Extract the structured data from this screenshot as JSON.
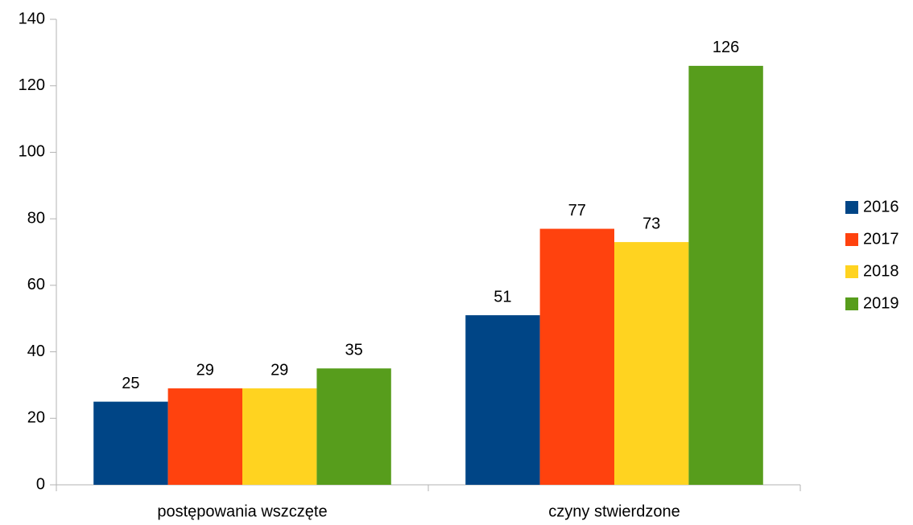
{
  "chart_data": {
    "type": "bar",
    "categories": [
      "postępowania wszczęte",
      "czyny stwierdzone"
    ],
    "series": [
      {
        "name": "2016",
        "color": "#004586",
        "values": [
          25,
          51
        ]
      },
      {
        "name": "2017",
        "color": "#ff420e",
        "values": [
          29,
          77
        ]
      },
      {
        "name": "2018",
        "color": "#ffd320",
        "values": [
          29,
          73
        ]
      },
      {
        "name": "2019",
        "color": "#579d1c",
        "values": [
          35,
          126
        ]
      }
    ],
    "ylim": [
      0,
      140
    ],
    "yticks": [
      0,
      20,
      40,
      60,
      80,
      100,
      120,
      140
    ],
    "grid": false,
    "legend": "right"
  }
}
